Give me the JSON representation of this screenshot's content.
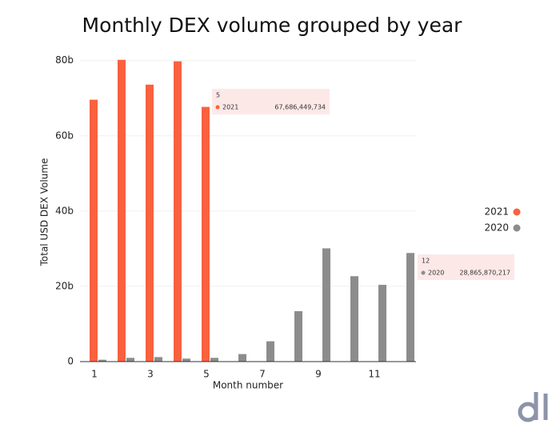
{
  "chart_data": {
    "type": "bar",
    "title": "Monthly DEX volume grouped by year",
    "x_label": "Month number",
    "y_label": "Total USD DEX Volume",
    "categories": [
      1,
      null,
      3,
      null,
      5,
      null,
      7,
      null,
      9,
      null,
      11,
      null
    ],
    "series": [
      {
        "name": "2021",
        "color": "#f9613f",
        "values": [
          69600000000,
          80200000000,
          73600000000,
          79800000000,
          67686449734,
          null,
          null,
          null,
          null,
          null,
          null,
          null
        ]
      },
      {
        "name": "2020",
        "color": "#8c8c8c",
        "values": [
          500000000,
          1000000000,
          1200000000,
          800000000,
          1000000000,
          2000000000,
          5400000000,
          13400000000,
          30100000000,
          22700000000,
          20400000000,
          28865870217
        ]
      }
    ],
    "ylim": [
      0,
      81000000000
    ],
    "yticks": [
      0,
      {
        "value": 20000000000,
        "label": "20b"
      },
      {
        "value": 40000000000,
        "label": "40b"
      },
      {
        "value": 60000000000,
        "label": "60b"
      },
      {
        "value": 80000000000,
        "label": "80b"
      }
    ],
    "grid": true,
    "legend": "right",
    "tooltips": [
      {
        "category": "5",
        "name": "2021",
        "label": "67,686,449,734"
      },
      {
        "category": "12",
        "name": "2020",
        "label": "28,865,870,217"
      }
    ]
  }
}
